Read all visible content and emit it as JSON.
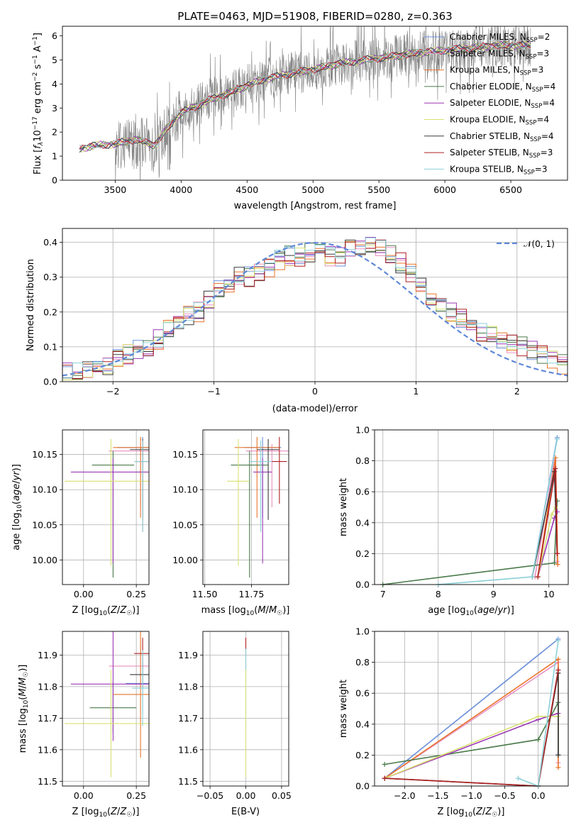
{
  "figure": {
    "title": "PLATE=0463, MJD=51908, FIBERID=0280, z=0.363"
  },
  "colors": {
    "Chabrier MILES": "#6a8fd9",
    "Salpeter MILES": "#e88fc0",
    "Kroupa MILES": "#e8742a",
    "Chabrier ELODIE": "#4a7a4a",
    "Salpeter ELODIE": "#9b37b4",
    "Kroupa ELODIE": "#d8e070",
    "Chabrier STELIB": "#3a3a3a",
    "Salpeter STELIB": "#b02020",
    "Kroupa STELIB": "#8cd0d8",
    "data": "#808080",
    "gaussian": "#5f88d8",
    "grid": "#b0b0b0"
  },
  "chart_data": [
    {
      "id": "spectrum",
      "type": "line",
      "xlabel": "wavelength [Angstrom, rest frame]",
      "ylabel": "Flux [f_λ 10^-17 erg cm^-2 s^-1 A^-1]",
      "xlim": [
        3100,
        6930
      ],
      "ylim": [
        0,
        6.4
      ],
      "xticks": [
        3500,
        4000,
        4500,
        5000,
        5500,
        6000,
        6500
      ],
      "yticks": [
        0,
        1,
        2,
        3,
        4,
        5,
        6
      ],
      "grid": false,
      "legend_position": "top-right",
      "legend": [
        {
          "name": "Chabrier MILES",
          "nssp": "2"
        },
        {
          "name": "Salpeter MILES",
          "nssp": "3"
        },
        {
          "name": "Kroupa MILES",
          "nssp": "3"
        },
        {
          "name": "Chabrier ELODIE",
          "nssp": "4"
        },
        {
          "name": "Salpeter ELODIE",
          "nssp": "4"
        },
        {
          "name": "Kroupa ELODIE",
          "nssp": "4"
        },
        {
          "name": "Chabrier STELIB",
          "nssp": "4"
        },
        {
          "name": "Salpeter STELIB",
          "nssp": "3"
        },
        {
          "name": "Kroupa STELIB",
          "nssp": "3"
        }
      ],
      "continuum": [
        [
          3230,
          1.3
        ],
        [
          3350,
          1.45
        ],
        [
          3500,
          1.5
        ],
        [
          3650,
          1.7
        ],
        [
          3800,
          1.45
        ],
        [
          3900,
          2.2
        ],
        [
          4000,
          2.8
        ],
        [
          4200,
          3.3
        ],
        [
          4400,
          3.7
        ],
        [
          4600,
          4.15
        ],
        [
          4800,
          4.4
        ],
        [
          5000,
          4.6
        ],
        [
          5200,
          4.85
        ],
        [
          5400,
          5.0
        ],
        [
          5600,
          5.15
        ],
        [
          5800,
          5.3
        ],
        [
          6000,
          5.4
        ],
        [
          6200,
          5.5
        ],
        [
          6400,
          5.6
        ],
        [
          6600,
          5.6
        ]
      ]
    },
    {
      "id": "residuals",
      "type": "line",
      "xlabel": "(data-model)/error",
      "ylabel": "Normed distribution",
      "xlim": [
        -2.5,
        2.5
      ],
      "ylim": [
        0,
        0.44
      ],
      "xticks": [
        -2,
        -1,
        0,
        1,
        2
      ],
      "yticks": [
        0.0,
        0.1,
        0.2,
        0.3,
        0.4
      ],
      "grid": true,
      "legend_position": "top-right",
      "legend": [
        {
          "name": "𝒩(0, 1)"
        }
      ],
      "histogram_bins": [
        -2.5,
        -2.4,
        -2.3,
        -2.2,
        -2.1,
        -2.0,
        -1.9,
        -1.8,
        -1.7,
        -1.6,
        -1.5,
        -1.4,
        -1.3,
        -1.2,
        -1.1,
        -1.0,
        -0.9,
        -0.8,
        -0.7,
        -0.6,
        -0.5,
        -0.4,
        -0.3,
        -0.2,
        -0.1,
        0.0,
        0.1,
        0.2,
        0.3,
        0.4,
        0.5,
        0.6,
        0.7,
        0.8,
        0.9,
        1.0,
        1.1,
        1.2,
        1.3,
        1.4,
        1.5,
        1.6,
        1.7,
        1.8,
        1.9,
        2.0,
        2.1,
        2.2,
        2.3,
        2.4,
        2.5
      ],
      "histogram_mean": [
        0.025,
        0.03,
        0.035,
        0.045,
        0.05,
        0.07,
        0.08,
        0.09,
        0.1,
        0.12,
        0.15,
        0.16,
        0.19,
        0.2,
        0.23,
        0.26,
        0.28,
        0.3,
        0.3,
        0.32,
        0.33,
        0.35,
        0.36,
        0.36,
        0.37,
        0.37,
        0.36,
        0.36,
        0.38,
        0.38,
        0.39,
        0.38,
        0.37,
        0.34,
        0.31,
        0.27,
        0.24,
        0.22,
        0.2,
        0.18,
        0.16,
        0.14,
        0.13,
        0.12,
        0.11,
        0.1,
        0.09,
        0.08,
        0.06,
        0.05
      ]
    },
    {
      "id": "age-vs-Z",
      "type": "scatter",
      "xlabel": "Z [log10(Z/Z☉)]",
      "ylabel": "age [log10(age/yr)]",
      "xlim": [
        -0.1,
        0.31
      ],
      "ylim": [
        9.965,
        10.185
      ],
      "xticks": [
        0.0,
        0.25
      ],
      "yticks": [
        10.0,
        10.05,
        10.1,
        10.15
      ],
      "grid": true,
      "points": [
        {
          "model": "Chabrier MILES",
          "x": 0.28,
          "y": 10.16,
          "xerr": 0.12,
          "yerr": [
            0.1,
            0.015
          ]
        },
        {
          "model": "Salpeter MILES",
          "x": 0.27,
          "y": 10.155,
          "xerr": 0.15,
          "yerr": [
            0.08,
            0.01
          ]
        },
        {
          "model": "Kroupa MILES",
          "x": 0.27,
          "y": 10.16,
          "xerr": 0.13,
          "yerr": [
            0.1,
            0.015
          ]
        },
        {
          "model": "Chabrier ELODIE",
          "x": 0.14,
          "y": 10.135,
          "xerr": 0.1,
          "yerr": [
            0.16,
            0.02
          ]
        },
        {
          "model": "Salpeter ELODIE",
          "x": 0.14,
          "y": 10.125,
          "xerr": 0.2,
          "yerr": [
            0.13,
            0.02
          ]
        },
        {
          "model": "Kroupa ELODIE",
          "x": 0.13,
          "y": 10.112,
          "xerr": 0.22,
          "yerr": [
            0.12,
            0.06
          ]
        },
        {
          "model": "Chabrier STELIB",
          "x": 0.28,
          "y": 10.157,
          "xerr": 0.06,
          "yerr": [
            0.1,
            0.015
          ]
        },
        {
          "model": "Salpeter STELIB",
          "x": 0.28,
          "y": 10.14,
          "xerr": 0.03,
          "yerr": [
            0.1,
            0.03
          ]
        },
        {
          "model": "Kroupa STELIB",
          "x": 0.28,
          "y": 10.14,
          "xerr": 0.04,
          "yerr": [
            0.1,
            0.03
          ]
        }
      ]
    },
    {
      "id": "age-vs-mass",
      "type": "scatter",
      "xlabel": "mass [log10(M/M☉)]",
      "xlim": [
        11.49,
        11.95
      ],
      "ylim": [
        9.965,
        10.185
      ],
      "xticks": [
        11.5,
        11.75
      ],
      "yticks": [
        10.0,
        10.05,
        10.1,
        10.15
      ],
      "grid": true,
      "points": [
        {
          "model": "Chabrier MILES",
          "x": 11.81,
          "y": 10.16,
          "xerr": 0.1,
          "yerr": [
            0.1,
            0.015
          ]
        },
        {
          "model": "Salpeter MILES",
          "x": 11.86,
          "y": 10.155,
          "xerr": 0.14,
          "yerr": [
            0.08,
            0.01
          ]
        },
        {
          "model": "Kroupa MILES",
          "x": 11.78,
          "y": 10.16,
          "xerr": 0.12,
          "yerr": [
            0.1,
            0.015
          ]
        },
        {
          "model": "Chabrier ELODIE",
          "x": 11.74,
          "y": 10.135,
          "xerr": 0.1,
          "yerr": [
            0.16,
            0.02
          ]
        },
        {
          "model": "Salpeter ELODIE",
          "x": 11.81,
          "y": 10.125,
          "xerr": 0.05,
          "yerr": [
            0.13,
            0.02
          ]
        },
        {
          "model": "Kroupa ELODIE",
          "x": 11.68,
          "y": 10.112,
          "xerr": 0.06,
          "yerr": [
            0.12,
            0.06
          ]
        },
        {
          "model": "Chabrier STELIB",
          "x": 11.84,
          "y": 10.157,
          "xerr": 0.06,
          "yerr": [
            0.1,
            0.015
          ]
        },
        {
          "model": "Salpeter STELIB",
          "x": 11.9,
          "y": 10.14,
          "xerr": 0.04,
          "yerr": [
            0.06,
            0.035
          ]
        },
        {
          "model": "Kroupa STELIB",
          "x": 11.8,
          "y": 10.14,
          "xerr": 0.06,
          "yerr": [
            0.1,
            0.03
          ]
        }
      ]
    },
    {
      "id": "mass-weight-vs-age",
      "type": "line",
      "xlabel": "age [log10(age/yr)]",
      "ylabel": "mass weight",
      "xlim": [
        6.85,
        10.35
      ],
      "ylim": [
        0,
        1
      ],
      "xticks": [
        7,
        8,
        9,
        10
      ],
      "yticks": [
        0.0,
        0.2,
        0.4,
        0.6,
        0.8,
        1.0
      ],
      "grid": true,
      "series": [
        {
          "name": "Chabrier MILES",
          "x": [
            9.7,
            10.15
          ],
          "y": [
            0.05,
            0.95
          ]
        },
        {
          "name": "Salpeter MILES",
          "x": [
            9.75,
            10.1,
            10.15
          ],
          "y": [
            0.05,
            0.8,
            0.15
          ]
        },
        {
          "name": "Kroupa MILES",
          "x": [
            9.8,
            10.12,
            10.16
          ],
          "y": [
            0.05,
            0.82,
            0.13
          ]
        },
        {
          "name": "Chabrier ELODIE",
          "x": [
            7.0,
            10.1,
            10.15
          ],
          "y": [
            0.0,
            0.14,
            0.54
          ]
        },
        {
          "name": "Salpeter ELODIE",
          "x": [
            9.8,
            10.1,
            10.15
          ],
          "y": [
            0.05,
            0.43,
            0.47
          ]
        },
        {
          "name": "Kroupa ELODIE",
          "x": [
            9.8,
            10.05,
            10.12
          ],
          "y": [
            0.05,
            0.45,
            0.5
          ]
        },
        {
          "name": "Chabrier STELIB",
          "x": [
            9.7,
            10.1,
            10.15
          ],
          "y": [
            0.05,
            0.73,
            0.2
          ]
        },
        {
          "name": "Salpeter STELIB",
          "x": [
            9.8,
            10.12,
            10.15
          ],
          "y": [
            0.05,
            0.75,
            0.2
          ]
        },
        {
          "name": "Kroupa STELIB",
          "x": [
            8.0,
            9.7,
            10.15
          ],
          "y": [
            0.0,
            0.05,
            0.94
          ]
        }
      ]
    },
    {
      "id": "mass-vs-Z",
      "type": "scatter",
      "xlabel": "Z [log10(Z/Z☉)]",
      "ylabel": "mass [log10(M/M☉)]",
      "xlim": [
        -0.1,
        0.31
      ],
      "ylim": [
        11.485,
        11.975
      ],
      "xticks": [
        0.0,
        0.25
      ],
      "yticks": [
        11.5,
        11.6,
        11.7,
        11.8,
        11.9
      ],
      "grid": true,
      "points": [
        {
          "model": "Chabrier MILES",
          "x": 0.28,
          "y": 11.81,
          "xerr": 0.08,
          "yerr": 0.1
        },
        {
          "model": "Salpeter MILES",
          "x": 0.27,
          "y": 11.865,
          "xerr": 0.15,
          "yerr": 0.07
        },
        {
          "model": "Kroupa MILES",
          "x": 0.27,
          "y": 11.775,
          "xerr": 0.13,
          "yerr": 0.2
        },
        {
          "model": "Chabrier ELODIE",
          "x": 0.14,
          "y": 11.733,
          "xerr": 0.11,
          "yerr": 0.08
        },
        {
          "model": "Salpeter ELODIE",
          "x": 0.14,
          "y": 11.808,
          "xerr": 0.2,
          "yerr": 0.18
        },
        {
          "model": "Kroupa ELODIE",
          "x": 0.13,
          "y": 11.683,
          "xerr": 0.22,
          "yerr": 0.17
        },
        {
          "model": "Chabrier STELIB",
          "x": 0.28,
          "y": 11.838,
          "xerr": 0.06,
          "yerr": 0.04
        },
        {
          "model": "Salpeter STELIB",
          "x": 0.28,
          "y": 11.905,
          "xerr": 0.04,
          "yerr": 0.05
        },
        {
          "model": "Kroupa STELIB",
          "x": 0.28,
          "y": 11.795,
          "xerr": 0.05,
          "yerr": 0.12
        }
      ]
    },
    {
      "id": "mass-vs-EBV",
      "type": "scatter",
      "xlabel": "E(B-V)",
      "xlim": [
        -0.06,
        0.06
      ],
      "ylim": [
        11.485,
        11.975
      ],
      "xticks": [
        -0.05,
        0.0,
        0.05
      ],
      "yticks": [
        11.5,
        11.6,
        11.7,
        11.8,
        11.9
      ],
      "grid": true,
      "points": [
        {
          "model": "Salpeter STELIB",
          "x": 0.0,
          "y": 11.905,
          "yerr": 0.05
        },
        {
          "model": "Kroupa STELIB",
          "x": 0.0,
          "y": 11.8,
          "yerr": 0.12
        },
        {
          "model": "Kroupa ELODIE",
          "x": 0.0,
          "y": 11.683,
          "yerr": 0.17
        }
      ]
    },
    {
      "id": "mass-weight-vs-Z",
      "type": "line",
      "xlabel": "Z [log10(Z/Z☉)]",
      "ylabel": "mass weight",
      "xlim": [
        -2.45,
        0.45
      ],
      "ylim": [
        0,
        1
      ],
      "xticks": [
        -2.0,
        -1.5,
        -1.0,
        -0.5,
        0.0
      ],
      "yticks": [
        0.0,
        0.2,
        0.4,
        0.6,
        0.8,
        1.0
      ],
      "grid": true,
      "series": [
        {
          "name": "Chabrier MILES",
          "x": [
            -2.3,
            0.3
          ],
          "y": [
            0.05,
            0.95
          ]
        },
        {
          "name": "Salpeter MILES",
          "x": [
            -2.3,
            0.3,
            0.3
          ],
          "y": [
            0.05,
            0.8,
            0.15
          ]
        },
        {
          "name": "Kroupa MILES",
          "x": [
            -2.3,
            0.3,
            0.3
          ],
          "y": [
            0.05,
            0.82,
            0.12
          ]
        },
        {
          "name": "Chabrier ELODIE",
          "x": [
            -2.3,
            0.0,
            0.3,
            0.3
          ],
          "y": [
            0.14,
            0.3,
            0.54,
            0.2
          ]
        },
        {
          "name": "Salpeter ELODIE",
          "x": [
            -2.3,
            0.0,
            0.3
          ],
          "y": [
            0.05,
            0.43,
            0.47
          ]
        },
        {
          "name": "Kroupa ELODIE",
          "x": [
            -2.3,
            0.0,
            0.3
          ],
          "y": [
            0.05,
            0.45,
            0.45
          ]
        },
        {
          "name": "Chabrier STELIB",
          "x": [
            -2.3,
            0.0,
            0.3,
            0.3
          ],
          "y": [
            0.05,
            0.0,
            0.73,
            0.2
          ]
        },
        {
          "name": "Salpeter STELIB",
          "x": [
            -2.3,
            0.0,
            0.3
          ],
          "y": [
            0.05,
            0.0,
            0.75
          ]
        },
        {
          "name": "Kroupa STELIB",
          "x": [
            -0.3,
            0.0,
            0.3
          ],
          "y": [
            0.05,
            0.0,
            0.94
          ]
        }
      ]
    }
  ]
}
